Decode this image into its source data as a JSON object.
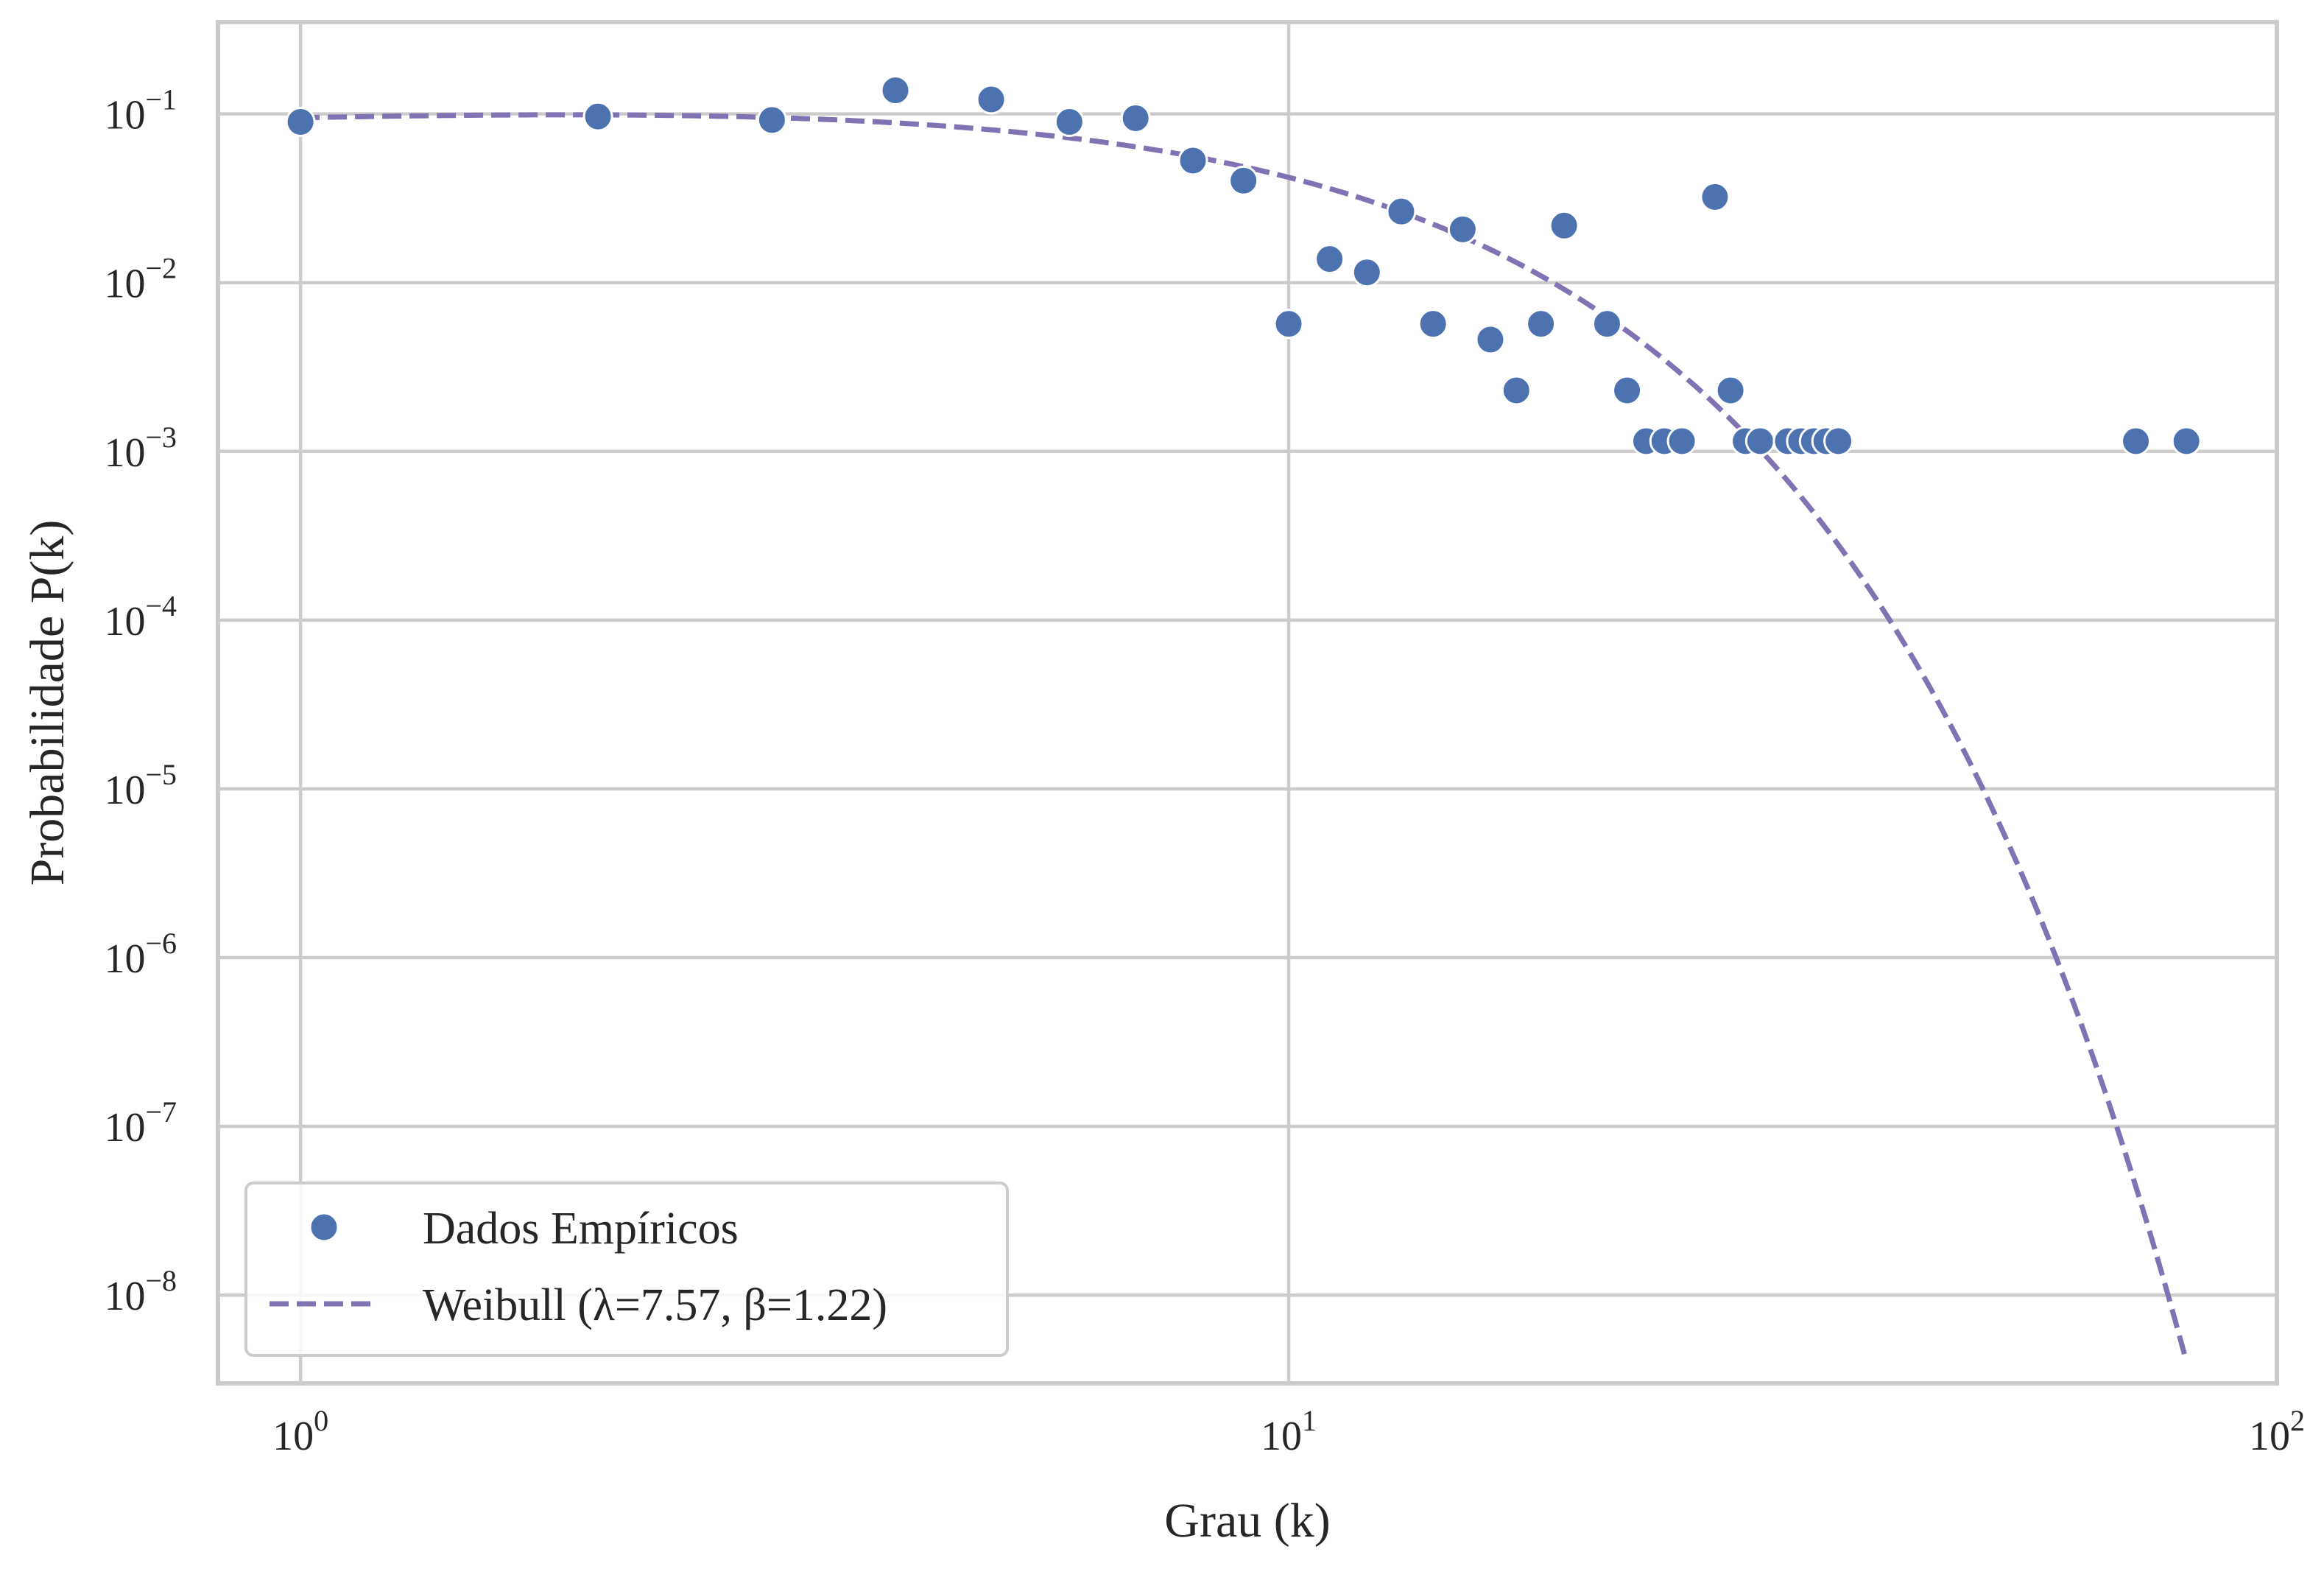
{
  "chart_data": {
    "type": "scatter",
    "xscale": "log",
    "yscale": "log",
    "xlim": [
      0.825,
      100
    ],
    "ylim": [
      3e-09,
      0.35
    ],
    "xlabel": "Grau (k)",
    "ylabel": "Probabilidade P(k)",
    "grid": true,
    "legend_position": "lower-left",
    "x_ticks": [
      {
        "value": 1,
        "base": "10",
        "exp": "0"
      },
      {
        "value": 10,
        "base": "10",
        "exp": "1"
      },
      {
        "value": 100,
        "base": "10",
        "exp": "2"
      }
    ],
    "y_ticks": [
      {
        "value": 0.1,
        "base": "10",
        "exp": "−1"
      },
      {
        "value": 0.01,
        "base": "10",
        "exp": "−2"
      },
      {
        "value": 0.001,
        "base": "10",
        "exp": "−3"
      },
      {
        "value": 0.0001,
        "base": "10",
        "exp": "−4"
      },
      {
        "value": 1e-05,
        "base": "10",
        "exp": "−5"
      },
      {
        "value": 1e-06,
        "base": "10",
        "exp": "−6"
      },
      {
        "value": 1e-07,
        "base": "10",
        "exp": "−7"
      },
      {
        "value": 1e-08,
        "base": "10",
        "exp": "−8"
      }
    ],
    "series": [
      {
        "name": "Dados Empíricos",
        "kind": "scatter",
        "color": "#4c72b0",
        "points": [
          [
            1,
            0.0897
          ],
          [
            2,
            0.0966
          ],
          [
            3,
            0.092
          ],
          [
            4,
            0.1379
          ],
          [
            5,
            0.1218
          ],
          [
            6,
            0.0897
          ],
          [
            7,
            0.0943
          ],
          [
            8,
            0.0529
          ],
          [
            9,
            0.0402
          ],
          [
            10,
            0.0057
          ],
          [
            11,
            0.0138
          ],
          [
            12,
            0.0115
          ],
          [
            13,
            0.0264
          ],
          [
            14,
            0.0057
          ],
          [
            15,
            0.0207
          ],
          [
            16,
            0.0046
          ],
          [
            17,
            0.0023
          ],
          [
            18,
            0.0057
          ],
          [
            19,
            0.0218
          ],
          [
            21,
            0.0057
          ],
          [
            22,
            0.0023
          ],
          [
            23,
            0.00115
          ],
          [
            24,
            0.00115
          ],
          [
            25,
            0.00115
          ],
          [
            27,
            0.0322
          ],
          [
            28,
            0.0023
          ],
          [
            29,
            0.00115
          ],
          [
            30,
            0.00115
          ],
          [
            32,
            0.00115
          ],
          [
            33,
            0.00115
          ],
          [
            34,
            0.00115
          ],
          [
            35,
            0.00115
          ],
          [
            36,
            0.00115
          ],
          [
            72,
            0.00115
          ],
          [
            81,
            0.00115
          ]
        ]
      },
      {
        "name": "Weibull (λ=7.57, β=1.22)",
        "kind": "line",
        "style": "dashed",
        "color": "#8172b3",
        "lambda": 7.57,
        "beta": 1.22,
        "x_range": [
          1,
          81
        ]
      }
    ]
  }
}
